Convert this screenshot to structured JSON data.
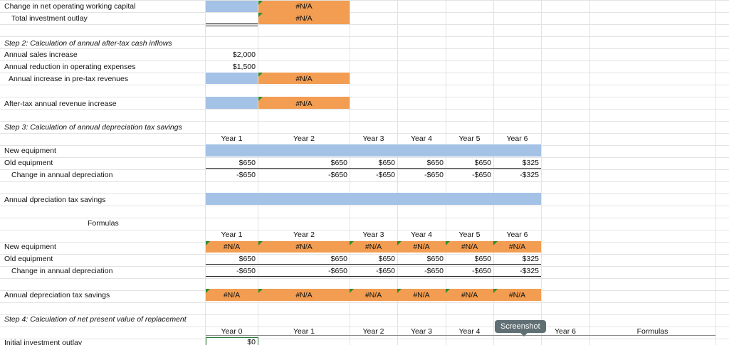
{
  "labels": {
    "change_nwc": "Change in net operating working capital",
    "total_investment": "Total investment outlay",
    "step2": "Step 2: Calculation of annual after-tax cash inflows",
    "annual_sales": "Annual sales increase",
    "annual_reduction": "Annual reduction in operating expenses",
    "annual_pretax": "Annual increase in pre-tax revenues",
    "aftertax_rev": "After-tax annual revenue increase",
    "step3": "Step 3: Calculation of annual depreciation tax savings",
    "new_equipment": "New equipment",
    "old_equipment": "Old equipment",
    "change_dep": "Change in annual depreciation",
    "dep_tax_savings_typo": "Annual dpreciation tax savings",
    "formulas_heading": "Formulas",
    "new_equipment_2": "New equipment",
    "old_equipment_2": "Old equipment",
    "change_dep_2": "Change in annual depreciation",
    "dep_tax_savings": "Annual depreciation tax savings",
    "step4": "Step 4:  Calculation of net present value of replacement",
    "initial_outlay": "Initial investment outlay"
  },
  "values": {
    "na": "#N/A",
    "sales": "$2,000",
    "reduction": "$1,500",
    "zero": "$0",
    "v650": "$650",
    "vneg650": "-$650",
    "v325": "$325",
    "vneg325": "-$325"
  },
  "years": {
    "y0": "Year 0",
    "y1": "Year 1",
    "y2": "Year 2",
    "y3": "Year 3",
    "y4": "Year 4",
    "y5": "Year 5",
    "y6": "Year 6"
  },
  "tooltip": "Screenshot",
  "formulas_col": "Formulas",
  "colors": {
    "blue_fill": "#a4c2e6",
    "orange_fill": "#f29d51",
    "error_marker": "#2e8b2e"
  }
}
